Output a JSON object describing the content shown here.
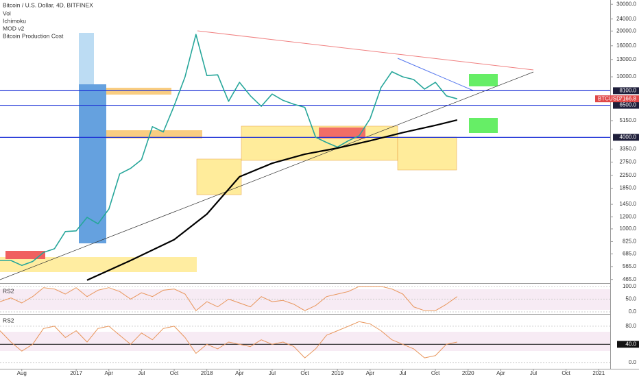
{
  "chart_data": {
    "type": "line",
    "title": "Bitcoin / U.S. Dollar, 4D, BITFINEX",
    "indicators": [
      "Vol",
      "Ichimoku",
      "MOD v2"
    ],
    "log_scale": true,
    "xlim": [
      "2016-06",
      "2021-03"
    ],
    "xticks": [
      {
        "value": "2016-08",
        "label": "Aug"
      },
      {
        "value": "2017-01",
        "label": "2017"
      },
      {
        "value": "2017-04",
        "label": "Apr"
      },
      {
        "value": "2017-07",
        "label": "Jul"
      },
      {
        "value": "2017-10",
        "label": "Oct"
      },
      {
        "value": "2018-01",
        "label": "2018"
      },
      {
        "value": "2018-04",
        "label": "Apr"
      },
      {
        "value": "2018-07",
        "label": "Jul"
      },
      {
        "value": "2018-10",
        "label": "Oct"
      },
      {
        "value": "2019-01",
        "label": "2019"
      },
      {
        "value": "2019-04",
        "label": "Apr"
      },
      {
        "value": "2019-07",
        "label": "Jul"
      },
      {
        "value": "2019-10",
        "label": "Oct"
      },
      {
        "value": "2020-01",
        "label": "2020"
      },
      {
        "value": "2020-04",
        "label": "Apr"
      },
      {
        "value": "2020-07",
        "label": "Jul"
      },
      {
        "value": "2020-10",
        "label": "Oct"
      },
      {
        "value": "2021-01",
        "label": "2021"
      }
    ],
    "ylim": [
      440,
      32000
    ],
    "yticks": [
      {
        "value": 30000,
        "label": "30000.0"
      },
      {
        "value": 24000,
        "label": "24000.0"
      },
      {
        "value": 20000,
        "label": "20000.0"
      },
      {
        "value": 16000,
        "label": "16000.0"
      },
      {
        "value": 13000,
        "label": "13000.0"
      },
      {
        "value": 10000,
        "label": "10000.0"
      },
      {
        "value": 5150,
        "label": "5150.0"
      },
      {
        "value": 3350,
        "label": "3350.0"
      },
      {
        "value": 2750,
        "label": "2750.0"
      },
      {
        "value": 2250,
        "label": "2250.0"
      },
      {
        "value": 1850,
        "label": "1850.0"
      },
      {
        "value": 1450,
        "label": "1450.0"
      },
      {
        "value": 1200,
        "label": "1200.0"
      },
      {
        "value": 1000,
        "label": "1000.0"
      },
      {
        "value": 825,
        "label": "825.0"
      },
      {
        "value": 685,
        "label": "685.0"
      },
      {
        "value": 565,
        "label": "565.0"
      },
      {
        "value": 465,
        "label": "465.0"
      }
    ],
    "hlines": [
      {
        "value": 8100,
        "label": "8100.0"
      },
      {
        "value": 6500,
        "label": "6500.0"
      },
      {
        "value": 4000,
        "label": "4000.0"
      }
    ],
    "x": [
      "2016-06",
      "2016-07",
      "2016-08",
      "2016-09",
      "2016-10",
      "2016-11",
      "2016-12",
      "2017-01",
      "2017-02",
      "2017-03",
      "2017-04",
      "2017-05",
      "2017-06",
      "2017-07",
      "2017-08",
      "2017-09",
      "2017-10",
      "2017-11",
      "2017-12",
      "2018-01",
      "2018-02",
      "2018-03",
      "2018-04",
      "2018-05",
      "2018-06",
      "2018-07",
      "2018-08",
      "2018-09",
      "2018-10",
      "2018-11",
      "2018-12",
      "2019-01",
      "2019-02",
      "2019-03",
      "2019-04",
      "2019-05",
      "2019-06",
      "2019-07",
      "2019-08",
      "2019-09",
      "2019-10",
      "2019-11",
      "2019-12"
    ],
    "series": [
      {
        "name": "BTCUSD",
        "color": "#26a69a",
        "values": [
          620,
          620,
          575,
          610,
          700,
          740,
          960,
          970,
          1190,
          1080,
          1350,
          2300,
          2500,
          2850,
          4700,
          4340,
          6450,
          10000,
          19000,
          10200,
          10300,
          6900,
          9200,
          7500,
          6400,
          7700,
          7000,
          6600,
          6300,
          4000,
          3700,
          3450,
          3800,
          4100,
          5300,
          8500,
          10800,
          10000,
          9600,
          8300,
          9200,
          7500,
          7166.8
        ]
      },
      {
        "name": "Bitcoin Production Cost",
        "color": "#000000",
        "x": [
          "2017-02",
          "2017-06",
          "2017-10",
          "2018-01",
          "2018-04",
          "2018-07",
          "2018-10",
          "2019-01",
          "2019-04",
          "2019-07",
          "2019-10",
          "2019-12"
        ],
        "values": [
          460,
          620,
          850,
          1250,
          2200,
          2700,
          3100,
          3400,
          3800,
          4300,
          4800,
          5200
        ]
      }
    ],
    "panels": [
      {
        "name": "RS2",
        "color": "#e8955a",
        "ylim": [
          -8,
          113
        ],
        "yticks": [
          {
            "value": 100,
            "label": "100.0"
          },
          {
            "value": 50,
            "label": "50.0"
          },
          {
            "value": 0,
            "label": "0.0"
          }
        ],
        "values": [
          40,
          55,
          35,
          60,
          95,
          90,
          70,
          95,
          60,
          85,
          95,
          80,
          50,
          75,
          60,
          85,
          90,
          70,
          5,
          40,
          20,
          50,
          35,
          20,
          60,
          40,
          45,
          30,
          5,
          25,
          60,
          70,
          80,
          100,
          100,
          100,
          90,
          70,
          20,
          5,
          5,
          30,
          60
        ]
      },
      {
        "name": "RS2",
        "color": "#e8955a",
        "ylim": [
          -14,
          107
        ],
        "yticks": [
          {
            "value": 80,
            "label": "80.0"
          },
          {
            "value": 0,
            "label": "0.0"
          }
        ],
        "hline": {
          "value": 40,
          "label": "40.0"
        },
        "values": [
          70,
          45,
          25,
          40,
          75,
          80,
          55,
          70,
          45,
          75,
          80,
          60,
          40,
          65,
          50,
          75,
          80,
          55,
          20,
          40,
          30,
          45,
          40,
          35,
          50,
          40,
          45,
          35,
          10,
          30,
          60,
          70,
          80,
          90,
          85,
          70,
          50,
          40,
          30,
          10,
          15,
          40,
          45
        ]
      }
    ]
  }
}
